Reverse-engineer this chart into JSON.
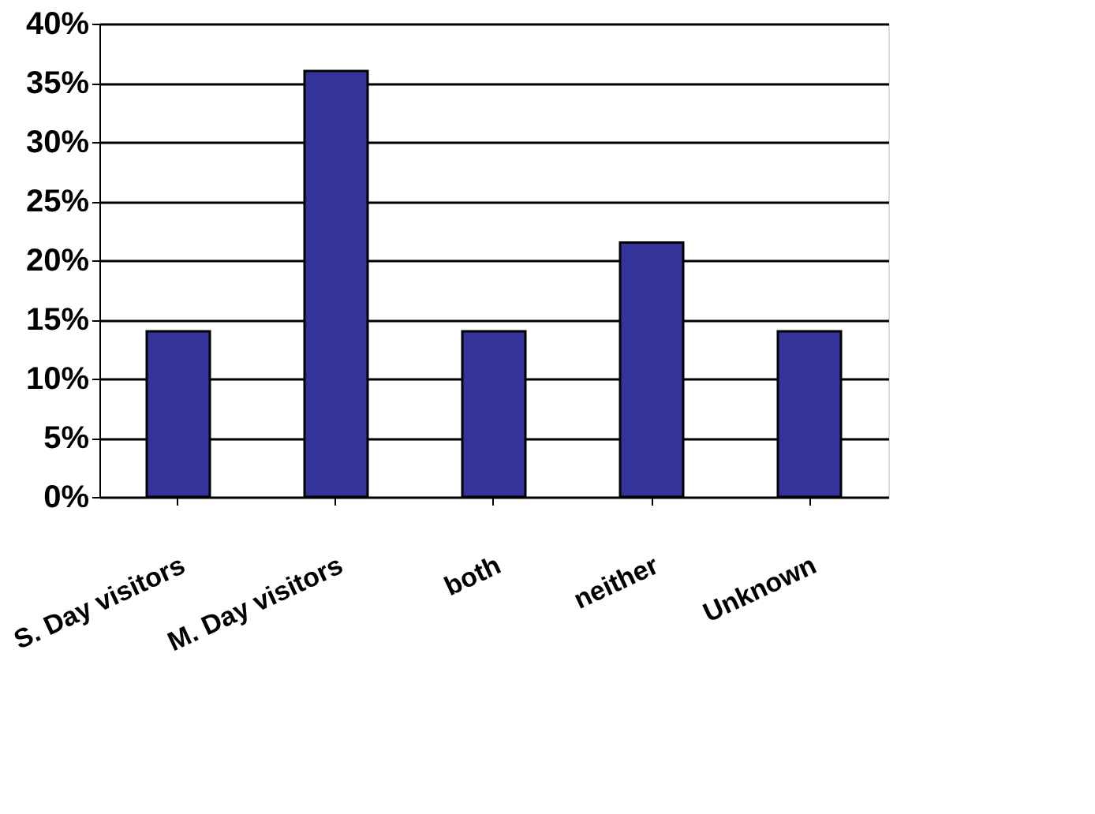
{
  "chart_data": {
    "type": "bar",
    "categories": [
      "S. Day visitors",
      "M. Day visitors",
      "both",
      "neither",
      "Unknown"
    ],
    "values": [
      14,
      36,
      14,
      21.5,
      14
    ],
    "color": "#333399",
    "ylim": [
      0,
      40
    ],
    "yticks": [
      {
        "value": 0,
        "label": "0%"
      },
      {
        "value": 5,
        "label": "5%"
      },
      {
        "value": 10,
        "label": "10%"
      },
      {
        "value": 15,
        "label": "15%"
      },
      {
        "value": 20,
        "label": "20%"
      },
      {
        "value": 25,
        "label": "25%"
      },
      {
        "value": 30,
        "label": "30%"
      },
      {
        "value": 35,
        "label": "35%"
      },
      {
        "value": 40,
        "label": "40%"
      }
    ],
    "grid": "y"
  }
}
